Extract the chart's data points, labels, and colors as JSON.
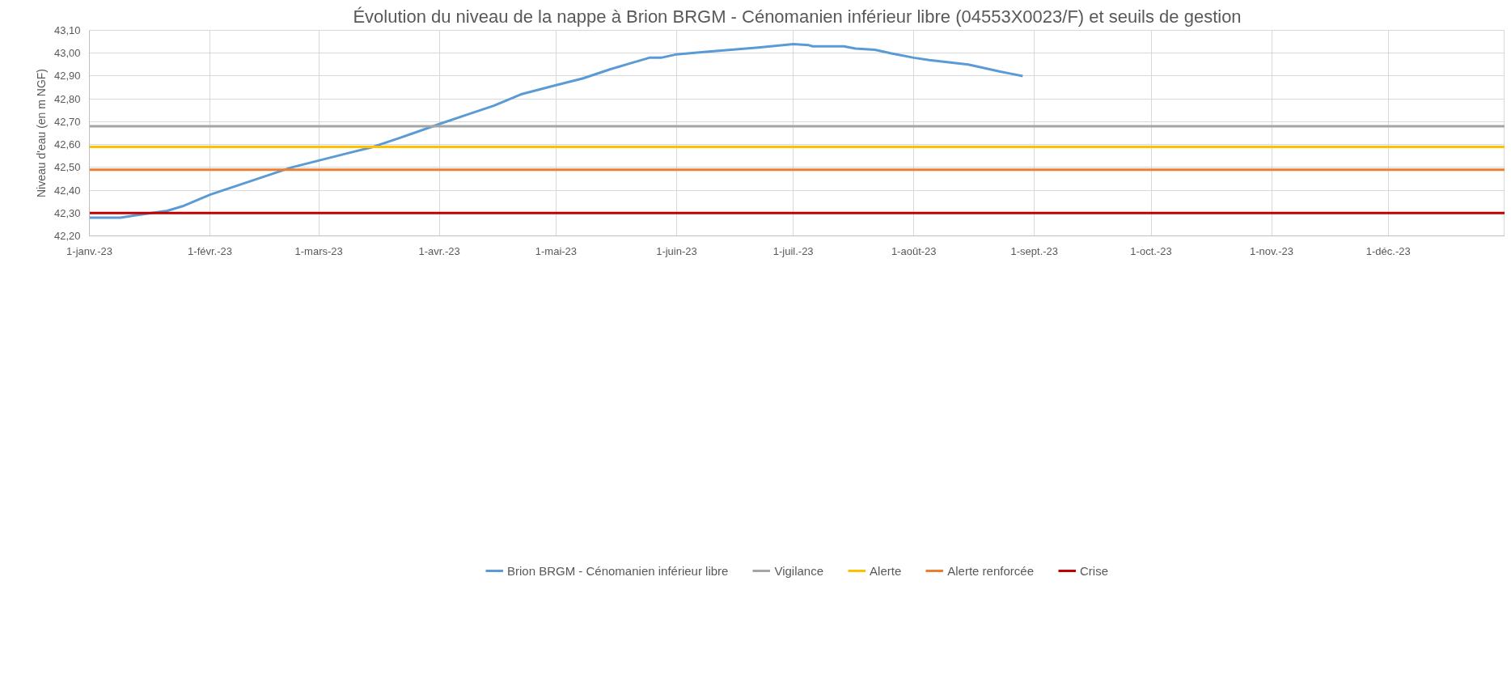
{
  "chart_data": {
    "type": "line",
    "title": "Évolution du niveau de la nappe à Brion BRGM - Cénomanien inférieur libre (04553X0023/F) et seuils de gestion",
    "ylabel": "Niveau d'eau (en m NGF)",
    "xlim": [
      "2023-01-01",
      "2023-12-31"
    ],
    "xticks": [
      {
        "value": "2023-01-01",
        "label": "1-janv.-23"
      },
      {
        "value": "2023-02-01",
        "label": "1-févr.-23"
      },
      {
        "value": "2023-03-01",
        "label": "1-mars-23"
      },
      {
        "value": "2023-04-01",
        "label": "1-avr.-23"
      },
      {
        "value": "2023-05-01",
        "label": "1-mai-23"
      },
      {
        "value": "2023-06-01",
        "label": "1-juin-23"
      },
      {
        "value": "2023-07-01",
        "label": "1-juil.-23"
      },
      {
        "value": "2023-08-01",
        "label": "1-août-23"
      },
      {
        "value": "2023-09-01",
        "label": "1-sept.-23"
      },
      {
        "value": "2023-10-01",
        "label": "1-oct.-23"
      },
      {
        "value": "2023-11-01",
        "label": "1-nov.-23"
      },
      {
        "value": "2023-12-01",
        "label": "1-déc.-23"
      }
    ],
    "ylim": [
      42.2,
      43.1
    ],
    "yticks": [
      {
        "value": 42.2,
        "label": "42,20"
      },
      {
        "value": 42.3,
        "label": "42,30"
      },
      {
        "value": 42.4,
        "label": "42,40"
      },
      {
        "value": 42.5,
        "label": "42,50"
      },
      {
        "value": 42.6,
        "label": "42,60"
      },
      {
        "value": 42.7,
        "label": "42,70"
      },
      {
        "value": 42.8,
        "label": "42,80"
      },
      {
        "value": 42.9,
        "label": "42,90"
      },
      {
        "value": 43.0,
        "label": "43,00"
      },
      {
        "value": 43.1,
        "label": "43,10"
      }
    ],
    "grid": true,
    "legend": "bottom",
    "marker": "none",
    "line_style": "solid",
    "series": [
      {
        "name": "Brion BRGM - Cénomanien inférieur libre",
        "color": "#5b9bd5",
        "x": [
          "2023-01-01",
          "2023-01-09",
          "2023-01-13",
          "2023-01-17",
          "2023-01-21",
          "2023-01-25",
          "2023-02-01",
          "2023-02-08",
          "2023-02-15",
          "2023-02-22",
          "2023-03-01",
          "2023-03-08",
          "2023-03-15",
          "2023-03-22",
          "2023-04-01",
          "2023-04-08",
          "2023-04-15",
          "2023-04-22",
          "2023-05-01",
          "2023-05-08",
          "2023-05-15",
          "2023-05-20",
          "2023-05-25",
          "2023-05-28",
          "2023-06-01",
          "2023-06-08",
          "2023-06-15",
          "2023-06-22",
          "2023-07-01",
          "2023-07-05",
          "2023-07-06",
          "2023-07-14",
          "2023-07-17",
          "2023-07-22",
          "2023-07-26",
          "2023-08-01",
          "2023-08-05",
          "2023-08-10",
          "2023-08-15",
          "2023-08-19",
          "2023-08-23",
          "2023-08-26",
          "2023-08-29"
        ],
        "values": [
          42.28,
          42.28,
          42.29,
          42.3,
          42.31,
          42.33,
          42.38,
          42.42,
          42.46,
          42.5,
          42.53,
          42.56,
          42.59,
          42.63,
          42.69,
          42.73,
          42.77,
          42.82,
          42.86,
          42.89,
          42.93,
          42.955,
          42.98,
          42.98,
          42.995,
          43.005,
          43.015,
          43.025,
          43.04,
          43.035,
          43.03,
          43.03,
          43.02,
          43.015,
          43.0,
          42.98,
          42.97,
          42.96,
          42.95,
          42.935,
          42.92,
          42.91,
          42.9
        ]
      },
      {
        "name": "Vigilance",
        "color": "#a5a5a5",
        "x": [
          "2023-01-01",
          "2023-12-31"
        ],
        "values": [
          42.68,
          42.68
        ]
      },
      {
        "name": "Alerte",
        "color": "#ffc000",
        "x": [
          "2023-01-01",
          "2023-12-31"
        ],
        "values": [
          42.59,
          42.59
        ]
      },
      {
        "name": "Alerte renforcée",
        "color": "#ed7d31",
        "x": [
          "2023-01-01",
          "2023-12-31"
        ],
        "values": [
          42.49,
          42.49
        ]
      },
      {
        "name": "Crise",
        "color": "#c00000",
        "x": [
          "2023-01-01",
          "2023-12-31"
        ],
        "values": [
          42.3,
          42.3
        ]
      }
    ]
  }
}
